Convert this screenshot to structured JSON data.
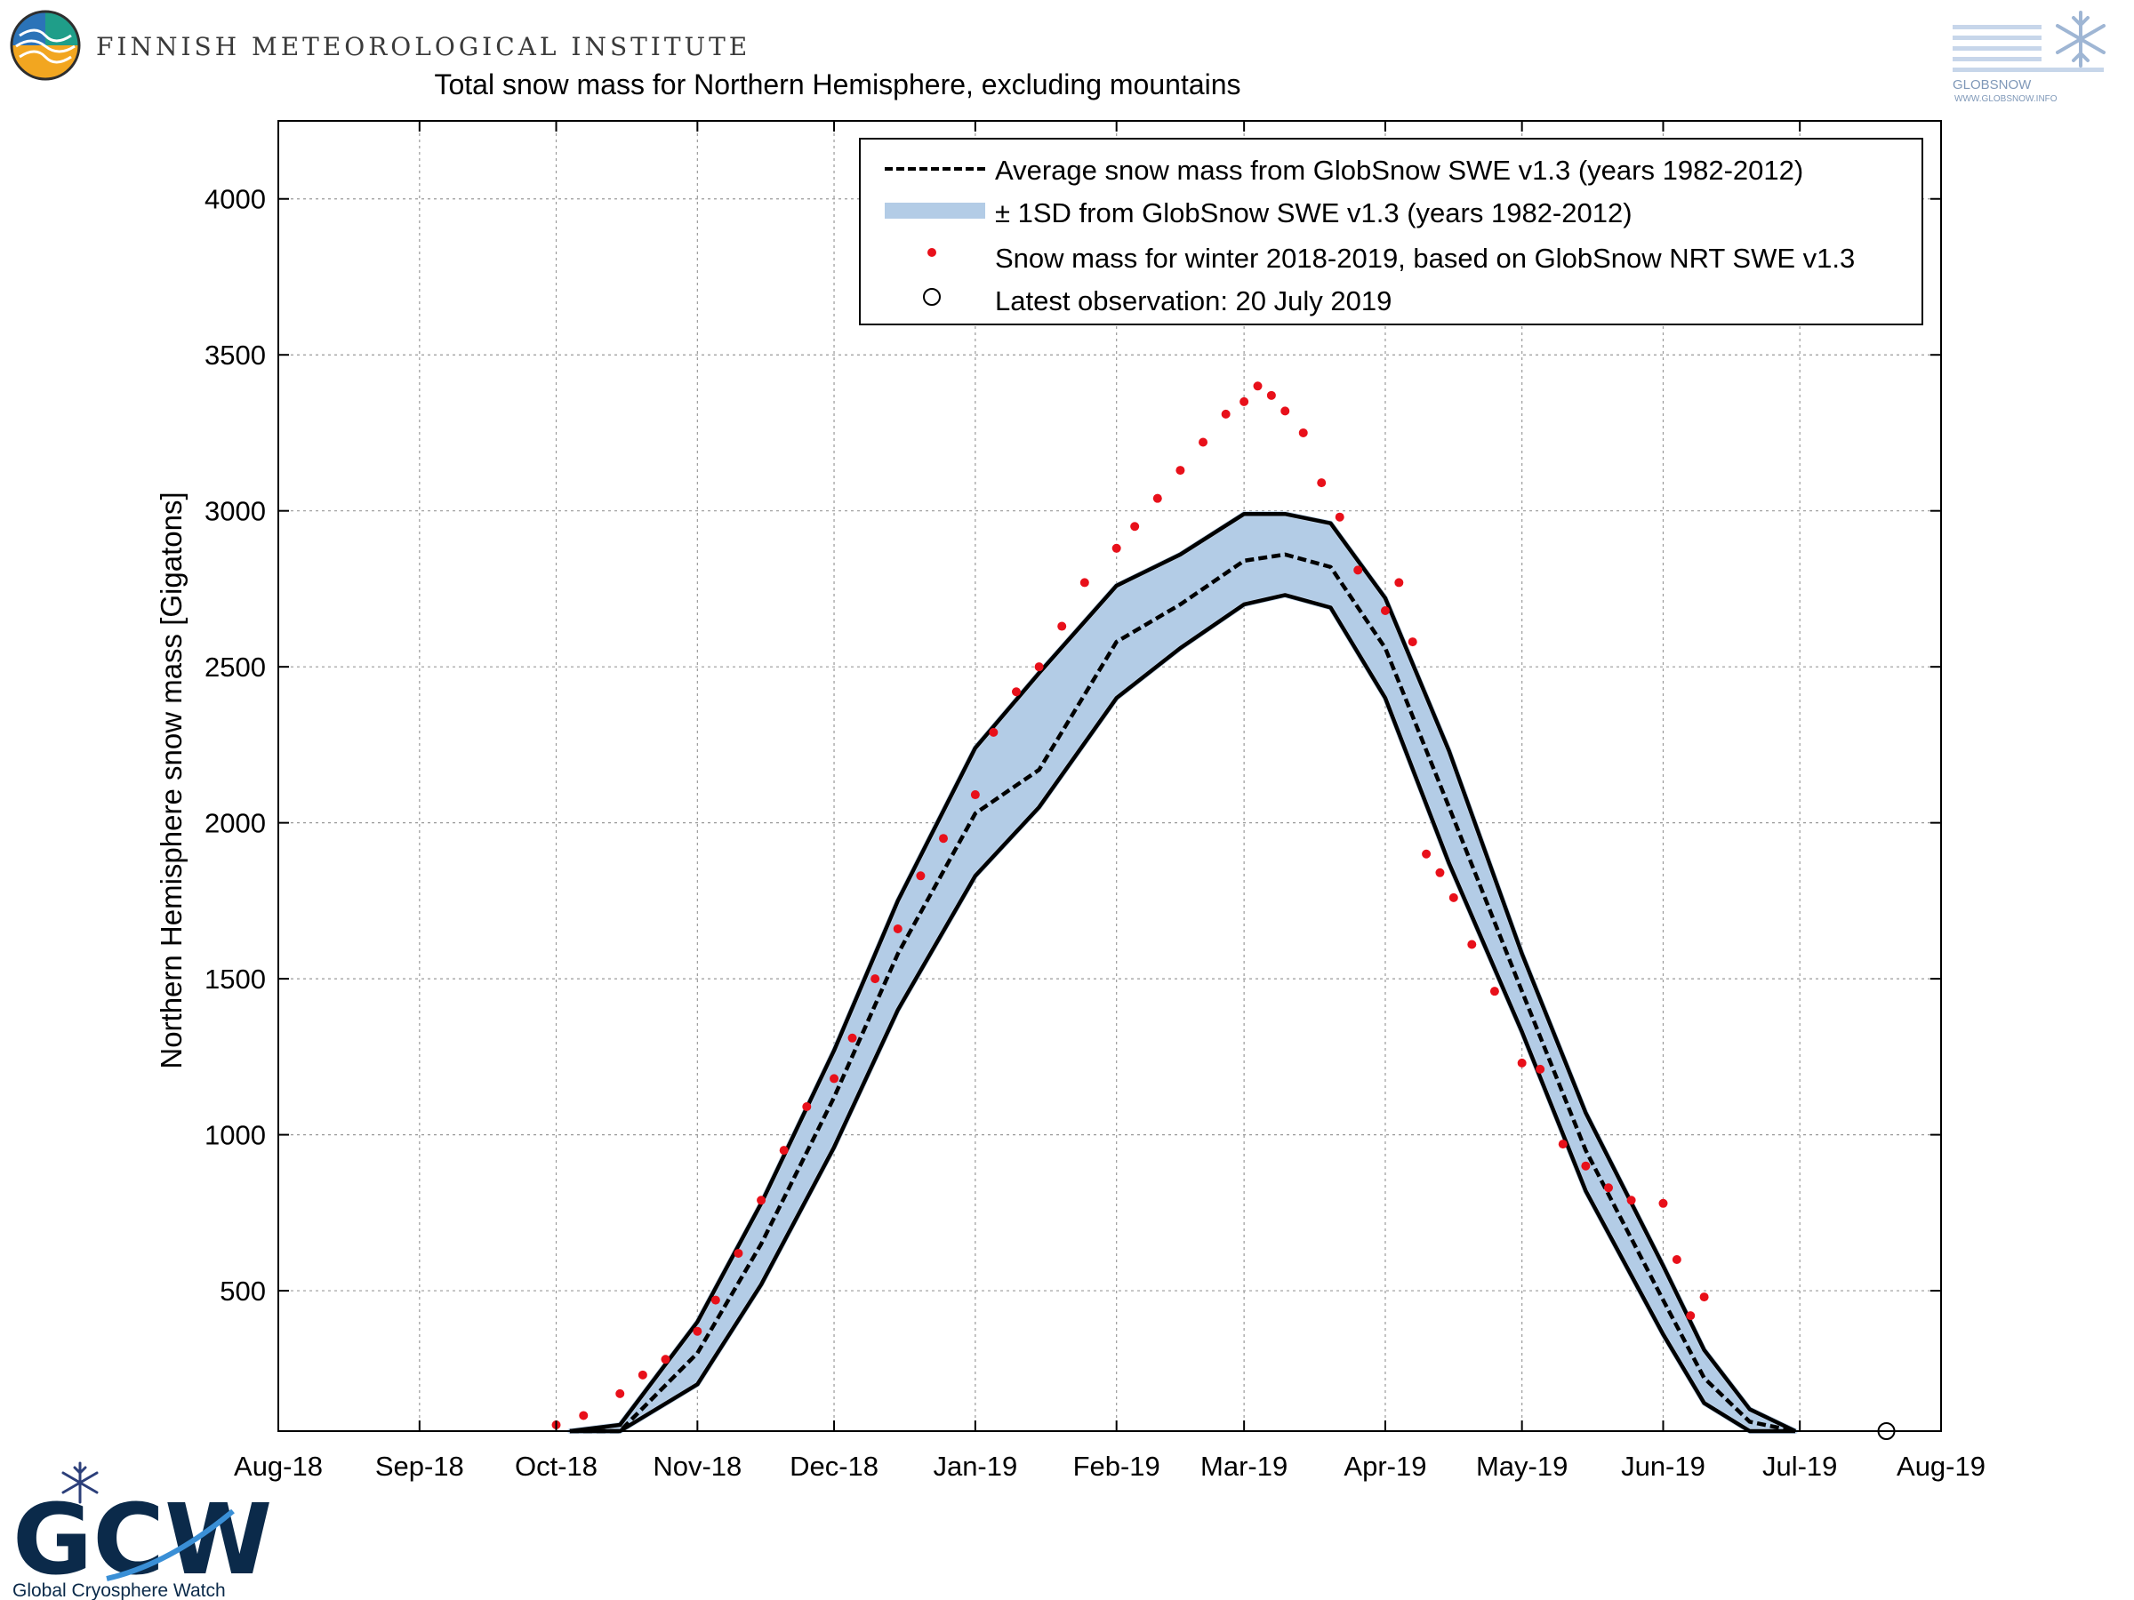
{
  "header": {
    "org_name": "FINNISH METEOROLOGICAL INSTITUTE",
    "globsnow_name": "GLOBSNOW",
    "globsnow_url": "WWW.GLOBSNOW.INFO"
  },
  "footer": {
    "gcw_acronym": "GCW",
    "gcw_name": "Global Cryosphere Watch"
  },
  "chart_data": {
    "type": "line",
    "title": "Total snow mass for Northern Hemisphere, excluding mountains",
    "xlabel": "",
    "ylabel": "Northern Hemisphere snow mass [Gigatons]",
    "x_ticks": [
      "Aug-18",
      "Sep-18",
      "Oct-18",
      "Nov-18",
      "Dec-18",
      "Jan-19",
      "Feb-19",
      "Mar-19",
      "Apr-19",
      "May-19",
      "Jun-19",
      "Jul-19",
      "Aug-19"
    ],
    "y_ticks": [
      500,
      1000,
      1500,
      2000,
      2500,
      3000,
      3500,
      4000
    ],
    "ylim": [
      50,
      4250
    ],
    "xlim_days": [
      0,
      365
    ],
    "grid": true,
    "legend_position": "top-right",
    "legend": [
      "Average snow mass from GlobSnow SWE v1.3 (years 1982-2012)",
      "± 1SD from GlobSnow SWE v1.3 (years 1982-2012)",
      "Snow mass for winter 2018-2019, based on GlobSnow NRT SWE v1.3",
      "Latest observation: 20 July 2019"
    ],
    "colors": {
      "average": "#000000",
      "band": "#b3cce6",
      "observed": "#e8101a"
    },
    "series": [
      {
        "name": "Average snow mass from GlobSnow SWE v1.3 (years 1982-2012)",
        "x": [
          "2018-10-04",
          "2018-10-15",
          "2018-11-01",
          "2018-11-15",
          "2018-12-01",
          "2018-12-15",
          "2019-01-01",
          "2019-01-15",
          "2019-02-01",
          "2019-02-15",
          "2019-03-01",
          "2019-03-10",
          "2019-03-20",
          "2019-04-01",
          "2019-04-15",
          "2019-05-01",
          "2019-05-15",
          "2019-06-01",
          "2019-06-10",
          "2019-06-20",
          "2019-06-30"
        ],
        "y": [
          0,
          30,
          300,
          650,
          1120,
          1580,
          2030,
          2170,
          2580,
          2700,
          2840,
          2860,
          2820,
          2560,
          2050,
          1460,
          950,
          470,
          220,
          80,
          0
        ]
      },
      {
        "name": "± 1SD from GlobSnow SWE v1.3 (years 1982-2012)",
        "x": [
          "2018-10-04",
          "2018-10-15",
          "2018-11-01",
          "2018-11-15",
          "2018-12-01",
          "2018-12-15",
          "2019-01-01",
          "2019-01-15",
          "2019-02-01",
          "2019-02-15",
          "2019-03-01",
          "2019-03-10",
          "2019-03-20",
          "2019-04-01",
          "2019-04-15",
          "2019-05-01",
          "2019-05-15",
          "2019-06-01",
          "2019-06-10",
          "2019-06-20",
          "2019-06-30"
        ],
        "upper": [
          20,
          70,
          400,
          780,
          1270,
          1750,
          2240,
          2480,
          2760,
          2860,
          2990,
          2990,
          2960,
          2720,
          2230,
          1580,
          1070,
          580,
          310,
          120,
          20
        ],
        "lower": [
          0,
          0,
          200,
          520,
          960,
          1400,
          1830,
          2050,
          2400,
          2560,
          2700,
          2730,
          2690,
          2400,
          1870,
          1330,
          820,
          360,
          140,
          40,
          0
        ]
      },
      {
        "name": "Snow mass for winter 2018-2019, based on GlobSnow NRT SWE v1.3",
        "x": [
          "2018-09-15",
          "2018-10-01",
          "2018-10-07",
          "2018-10-15",
          "2018-10-20",
          "2018-10-25",
          "2018-11-01",
          "2018-11-05",
          "2018-11-10",
          "2018-11-15",
          "2018-11-20",
          "2018-11-25",
          "2018-12-01",
          "2018-12-05",
          "2018-12-10",
          "2018-12-15",
          "2018-12-20",
          "2018-12-25",
          "2019-01-01",
          "2019-01-05",
          "2019-01-10",
          "2019-01-15",
          "2019-01-20",
          "2019-01-25",
          "2019-02-01",
          "2019-02-05",
          "2019-02-10",
          "2019-02-15",
          "2019-02-20",
          "2019-02-25",
          "2019-03-01",
          "2019-03-04",
          "2019-03-07",
          "2019-03-10",
          "2019-03-14",
          "2019-03-18",
          "2019-03-22",
          "2019-03-26",
          "2019-04-01",
          "2019-04-04",
          "2019-04-07",
          "2019-04-10",
          "2019-04-13",
          "2019-04-16",
          "2019-04-20",
          "2019-04-25",
          "2019-05-01",
          "2019-05-05",
          "2019-05-10",
          "2019-05-15",
          "2019-05-20",
          "2019-05-25",
          "2019-06-01",
          "2019-06-04",
          "2019-06-07",
          "2019-06-10"
        ],
        "y": [
          10,
          70,
          100,
          170,
          230,
          280,
          370,
          470,
          620,
          790,
          950,
          1090,
          1180,
          1310,
          1500,
          1660,
          1830,
          1950,
          2090,
          2290,
          2420,
          2500,
          2630,
          2770,
          2880,
          2950,
          3040,
          3130,
          3220,
          3310,
          3350,
          3400,
          3370,
          3320,
          3250,
          3090,
          2980,
          2810,
          2680,
          2770,
          2580,
          1900,
          1840,
          1760,
          1610,
          1460,
          1230,
          1210,
          970,
          900,
          830,
          790,
          780,
          600,
          420,
          480
        ]
      },
      {
        "name": "Latest observation: 20 July 2019",
        "x": [
          "2019-07-20"
        ],
        "y": [
          0
        ]
      }
    ]
  }
}
